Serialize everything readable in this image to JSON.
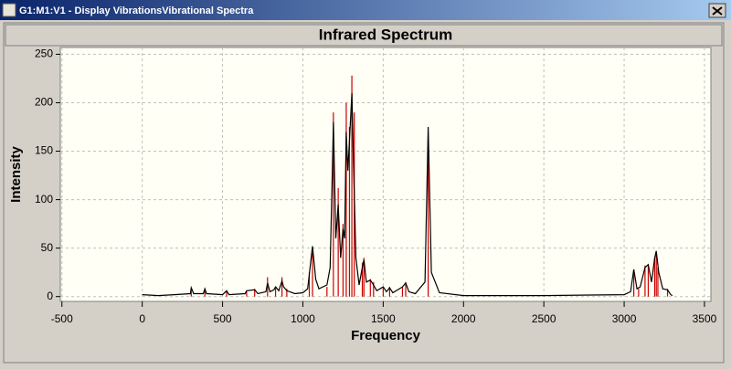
{
  "window": {
    "title": "G1:M1:V1 - Display VibrationsVibrational Spectra"
  },
  "chart_data": {
    "type": "line",
    "title": "Infrared Spectrum",
    "x_label": "Frequency",
    "y_label": "Intensity",
    "xlim": [
      -510,
      3540
    ],
    "ylim": [
      -5,
      257
    ],
    "xticks": [
      -500,
      0,
      500,
      1000,
      1500,
      2000,
      2500,
      3000,
      3500
    ],
    "yticks": [
      0,
      50,
      100,
      150,
      200,
      250
    ],
    "grid": true,
    "series": [
      {
        "style": "stick",
        "color": "#cc0000",
        "x": [
          305,
          390,
          525,
          650,
          700,
          780,
          830,
          870,
          900,
          1040,
          1060,
          1150,
          1190,
          1220,
          1250,
          1270,
          1290,
          1305,
          1320,
          1370,
          1380,
          1420,
          1440,
          1500,
          1540,
          1620,
          1640,
          1780,
          3060,
          3090,
          3130,
          3150,
          3190,
          3200,
          3210,
          3270
        ],
        "values": [
          8,
          8,
          6,
          5,
          8,
          20,
          10,
          20,
          8,
          25,
          45,
          10,
          190,
          112,
          75,
          200,
          175,
          228,
          190,
          35,
          40,
          18,
          15,
          10,
          10,
          10,
          15,
          162,
          28,
          8,
          32,
          32,
          40,
          45,
          30,
          8
        ]
      },
      {
        "style": "line",
        "color": "#000000",
        "x": [
          0,
          100,
          200,
          300,
          305,
          320,
          380,
          390,
          400,
          500,
          525,
          540,
          640,
          650,
          700,
          720,
          770,
          780,
          795,
          820,
          830,
          850,
          870,
          880,
          900,
          950,
          1000,
          1030,
          1060,
          1080,
          1100,
          1150,
          1170,
          1190,
          1205,
          1220,
          1235,
          1250,
          1260,
          1270,
          1280,
          1290,
          1305,
          1315,
          1330,
          1350,
          1370,
          1380,
          1395,
          1420,
          1440,
          1460,
          1500,
          1520,
          1540,
          1560,
          1620,
          1640,
          1660,
          1700,
          1760,
          1780,
          1800,
          1850,
          2000,
          2500,
          3000,
          3040,
          3060,
          3080,
          3100,
          3130,
          3150,
          3170,
          3190,
          3200,
          3215,
          3240,
          3270,
          3290,
          3300
        ],
        "values": [
          2,
          1,
          2,
          3,
          9,
          3,
          3,
          8,
          3,
          2,
          6,
          2,
          3,
          6,
          7,
          3,
          5,
          14,
          5,
          7,
          10,
          6,
          16,
          10,
          6,
          3,
          4,
          8,
          52,
          18,
          8,
          12,
          30,
          180,
          60,
          95,
          40,
          70,
          60,
          170,
          130,
          160,
          210,
          140,
          40,
          12,
          30,
          38,
          15,
          17,
          12,
          6,
          10,
          5,
          9,
          4,
          10,
          14,
          5,
          3,
          15,
          175,
          25,
          4,
          1,
          1,
          2,
          5,
          28,
          8,
          10,
          30,
          33,
          15,
          40,
          47,
          25,
          8,
          7,
          2,
          1
        ]
      }
    ]
  }
}
